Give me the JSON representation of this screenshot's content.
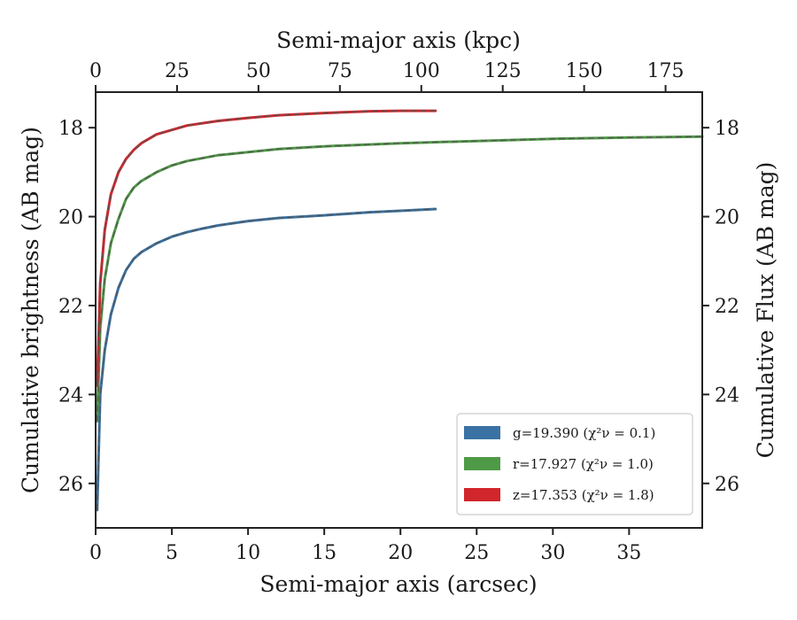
{
  "chart_data": {
    "type": "line",
    "xlabel_bottom": "Semi-major axis (arcsec)",
    "xlabel_top": "Semi-major axis (kpc)",
    "ylabel_left": "Cumulative brightness (AB mag)",
    "ylabel_right": "Cumulative Flux (AB mag)",
    "xlim": [
      0,
      39.8
    ],
    "ylim": [
      27,
      17.2
    ],
    "y_inverted": true,
    "xticks_bottom": [
      0,
      5,
      10,
      15,
      20,
      25,
      30,
      35
    ],
    "xticks_top": [
      0,
      25,
      50,
      75,
      100,
      125,
      150,
      175
    ],
    "top_axis_kpc_per_arcsec": 4.68,
    "yticks": [
      18,
      20,
      22,
      24,
      26
    ],
    "grid": false,
    "legend_position": "lower-right",
    "series": [
      {
        "name": "g=19.390",
        "chi_label": "χ²ν = 0.1",
        "color": "#3a72a3",
        "x": [
          0.1,
          0.3,
          0.6,
          1.0,
          1.5,
          2.0,
          2.5,
          3.0,
          4.0,
          5.0,
          6.0,
          7.0,
          8.0,
          10.0,
          12.0,
          15.0,
          18.0,
          20.0,
          22.3
        ],
        "y": [
          26.6,
          24.0,
          23.0,
          22.2,
          21.6,
          21.2,
          20.95,
          20.8,
          20.6,
          20.45,
          20.35,
          20.27,
          20.2,
          20.1,
          20.03,
          19.97,
          19.9,
          19.87,
          19.83
        ]
      },
      {
        "name": "r=17.927",
        "chi_label": "χ²ν = 1.0",
        "color": "#4f9a46",
        "x": [
          0.1,
          0.3,
          0.6,
          1.0,
          1.5,
          2.0,
          2.5,
          3.0,
          4.0,
          5.0,
          6.0,
          8.0,
          10.0,
          12.0,
          15.0,
          20.0,
          25.0,
          30.0,
          35.0,
          39.8
        ],
        "y": [
          24.6,
          22.5,
          21.4,
          20.6,
          20.05,
          19.6,
          19.35,
          19.2,
          19.0,
          18.85,
          18.75,
          18.62,
          18.55,
          18.48,
          18.42,
          18.35,
          18.3,
          18.25,
          18.22,
          18.2
        ]
      },
      {
        "name": "z=17.353",
        "chi_label": "χ²ν = 1.8",
        "color": "#d1262b",
        "x": [
          0.1,
          0.3,
          0.6,
          1.0,
          1.5,
          2.0,
          2.5,
          3.0,
          4.0,
          5.0,
          6.0,
          8.0,
          10.0,
          12.0,
          15.0,
          18.0,
          20.0,
          22.3
        ],
        "y": [
          23.8,
          21.5,
          20.3,
          19.5,
          19.0,
          18.7,
          18.5,
          18.35,
          18.15,
          18.05,
          17.95,
          17.85,
          17.78,
          17.72,
          17.67,
          17.63,
          17.62,
          17.62
        ]
      }
    ]
  }
}
